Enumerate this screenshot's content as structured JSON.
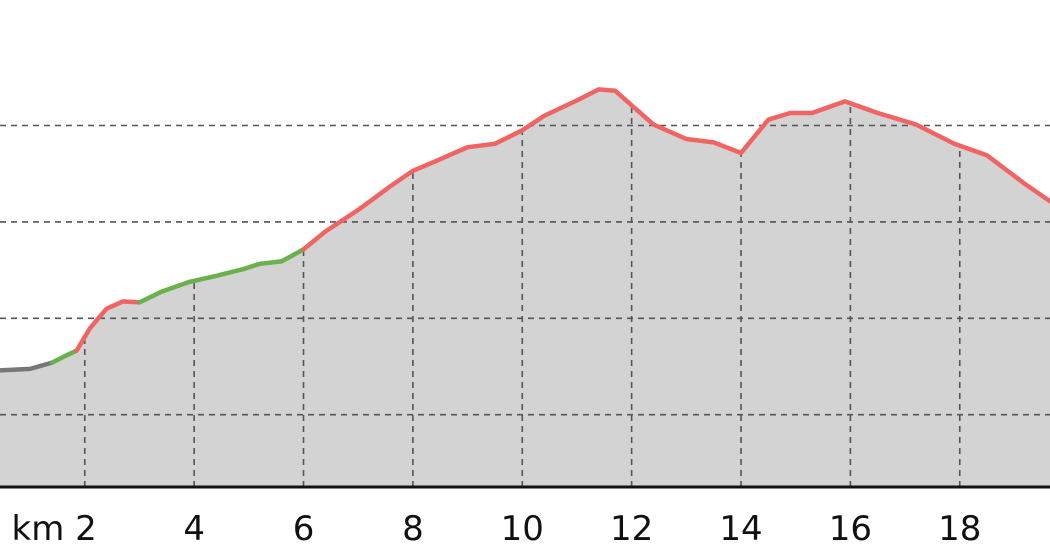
{
  "chart_data": {
    "type": "area",
    "x_unit": "km",
    "x_tick_labels": [
      "km 2",
      "4",
      "6",
      "8",
      "10",
      "12",
      "14",
      "16",
      "18"
    ],
    "x_ticks": [
      2,
      4,
      6,
      8,
      10,
      12,
      14,
      16,
      18
    ],
    "xlim": [
      0.45,
      19.65
    ],
    "ylim": [
      0,
      100
    ],
    "y_grid_values": [
      15,
      35,
      55,
      75
    ],
    "grid": true,
    "colors": {
      "fill": "#d3d3d3",
      "flat": "#777777",
      "moderate": "#6ab04c",
      "steep": "#f06464"
    },
    "profile": [
      [
        0.45,
        24.2
      ],
      [
        1.0,
        24.5
      ],
      [
        1.4,
        25.8
      ],
      [
        1.7,
        27.5
      ],
      [
        1.85,
        28.3
      ],
      [
        2.1,
        33
      ],
      [
        2.4,
        37
      ],
      [
        2.7,
        38.5
      ],
      [
        3.0,
        38.3
      ],
      [
        3.4,
        40.5
      ],
      [
        3.9,
        42.5
      ],
      [
        4.4,
        43.8
      ],
      [
        4.9,
        45.2
      ],
      [
        5.2,
        46.3
      ],
      [
        5.6,
        46.8
      ],
      [
        6.0,
        49.3
      ],
      [
        6.4,
        53
      ],
      [
        7.0,
        57.5
      ],
      [
        7.6,
        62.5
      ],
      [
        8.0,
        65.6
      ],
      [
        8.4,
        67.5
      ],
      [
        9.0,
        70.5
      ],
      [
        9.5,
        71.2
      ],
      [
        10.0,
        74
      ],
      [
        10.4,
        77
      ],
      [
        11.0,
        80.2
      ],
      [
        11.4,
        82.5
      ],
      [
        11.7,
        82.2
      ],
      [
        12.4,
        75.2
      ],
      [
        13.0,
        72.2
      ],
      [
        13.5,
        71.5
      ],
      [
        14.0,
        69.3
      ],
      [
        14.5,
        76.2
      ],
      [
        14.9,
        77.6
      ],
      [
        15.3,
        77.6
      ],
      [
        15.9,
        80
      ],
      [
        16.5,
        77.6
      ],
      [
        17.2,
        75.2
      ],
      [
        17.9,
        71.2
      ],
      [
        18.5,
        68.8
      ],
      [
        19.2,
        62.8
      ],
      [
        19.65,
        59.3
      ]
    ],
    "grade_segments": [
      {
        "grade": "flat",
        "from": 0.45,
        "to": 1.4
      },
      {
        "grade": "moderate",
        "from": 1.4,
        "to": 1.85
      },
      {
        "grade": "steep",
        "from": 1.85,
        "to": 3.0
      },
      {
        "grade": "moderate",
        "from": 3.0,
        "to": 6.0
      },
      {
        "grade": "steep",
        "from": 6.0,
        "to": 19.65
      }
    ]
  }
}
